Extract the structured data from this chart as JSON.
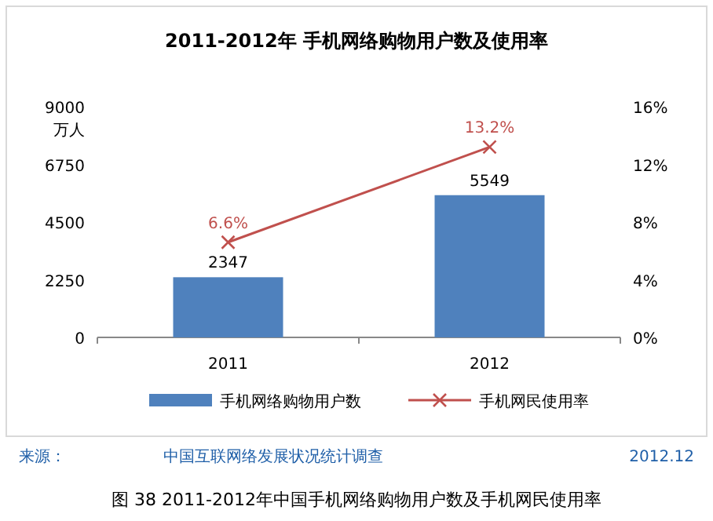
{
  "chart_data": {
    "type": "bar",
    "title": "2011-2012年 手机网络购物用户数及使用率",
    "ylabel": "万人",
    "categories": [
      "2011",
      "2012"
    ],
    "series": [
      {
        "name": "手机网络购物用户数",
        "color": "#4f81bd",
        "values": [
          2347,
          5549
        ],
        "value_labels": [
          "2347",
          "5549"
        ]
      },
      {
        "name": "手机网民使用率",
        "type": "line",
        "axis": "y2",
        "color": "#c0504d",
        "marker": "cross",
        "values": [
          6.6,
          13.2
        ],
        "value_labels": [
          "6.6%",
          "13.2%"
        ]
      }
    ],
    "ylim": [
      0,
      9000
    ],
    "yticks": [
      0,
      2250,
      4500,
      6750,
      9000
    ],
    "y2lim": [
      0,
      16
    ],
    "y2ticks": [
      {
        "value": 0,
        "label": "0%"
      },
      {
        "value": 4,
        "label": "4%"
      },
      {
        "value": 8,
        "label": "8%"
      },
      {
        "value": 12,
        "label": "12%"
      },
      {
        "value": 16,
        "label": "16%"
      }
    ],
    "legend": "bottom",
    "annotations": [
      "来源：",
      "中国互联网络发展状况统计调查",
      "2012.12",
      "图 38  2011-2012年中国手机网络购物用户数及手机网民使用率"
    ]
  }
}
